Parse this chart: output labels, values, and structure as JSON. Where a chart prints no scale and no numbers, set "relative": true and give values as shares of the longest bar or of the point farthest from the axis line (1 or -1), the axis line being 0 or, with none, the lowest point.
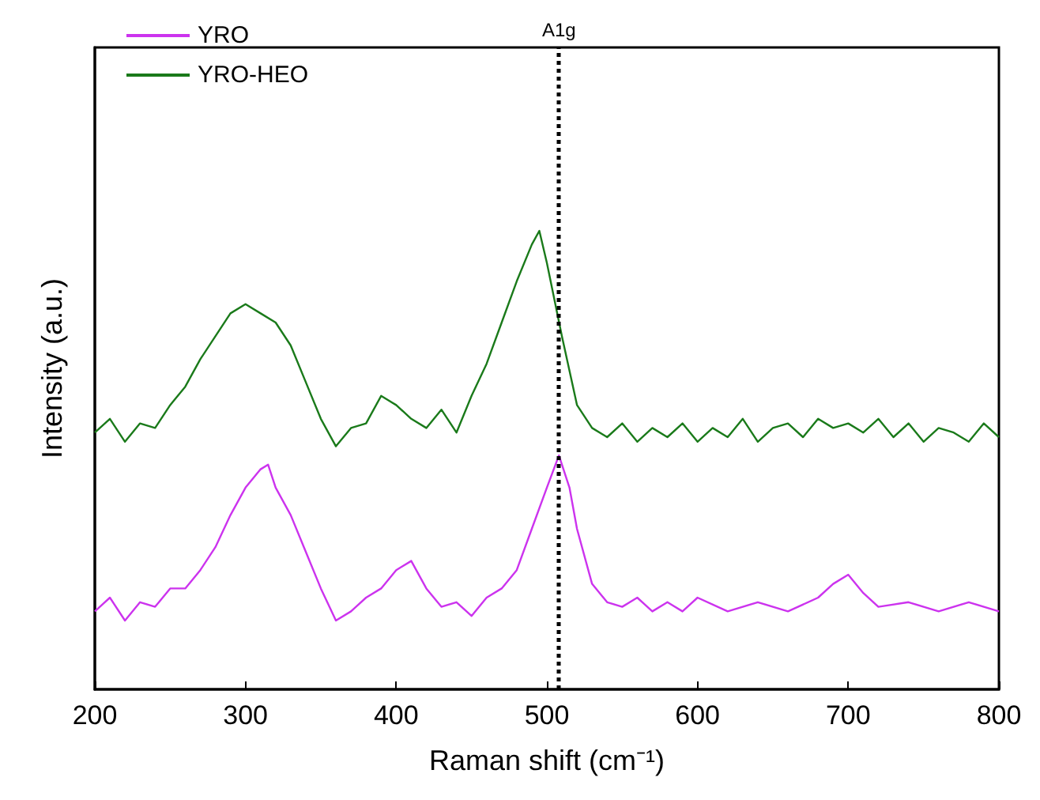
{
  "chart_data": {
    "type": "line",
    "xlabel": "Raman shift (cm⁻¹)",
    "ylabel": "Intensity (a.u.)",
    "relative": true,
    "xlim": [
      200,
      800
    ],
    "xticks": [
      200,
      300,
      400,
      500,
      600,
      700,
      800
    ],
    "legend": "top left",
    "grid": false,
    "marker": "none",
    "line_style": "solid",
    "ref_lines": [
      {
        "axis": "x",
        "value": 508,
        "label": "A1g",
        "line_style": "dotted",
        "color": "#000000"
      }
    ],
    "series": [
      {
        "name": "YRO",
        "color": "#cc33ee",
        "x": [
          200,
          210,
          220,
          230,
          240,
          250,
          260,
          270,
          280,
          290,
          300,
          310,
          315,
          320,
          330,
          340,
          350,
          360,
          370,
          380,
          390,
          400,
          410,
          420,
          430,
          440,
          450,
          460,
          470,
          480,
          490,
          500,
          508,
          515,
          520,
          530,
          540,
          550,
          560,
          570,
          580,
          590,
          600,
          620,
          640,
          660,
          680,
          690,
          700,
          710,
          720,
          740,
          760,
          780,
          800
        ],
        "values": [
          0.17,
          0.2,
          0.15,
          0.19,
          0.18,
          0.22,
          0.22,
          0.26,
          0.31,
          0.38,
          0.44,
          0.48,
          0.49,
          0.44,
          0.38,
          0.3,
          0.22,
          0.15,
          0.17,
          0.2,
          0.22,
          0.26,
          0.28,
          0.22,
          0.18,
          0.19,
          0.16,
          0.2,
          0.22,
          0.26,
          0.35,
          0.44,
          0.51,
          0.44,
          0.35,
          0.23,
          0.19,
          0.18,
          0.2,
          0.17,
          0.19,
          0.17,
          0.2,
          0.17,
          0.19,
          0.17,
          0.2,
          0.23,
          0.25,
          0.21,
          0.18,
          0.19,
          0.17,
          0.19,
          0.17
        ]
      },
      {
        "name": "YRO-HEO",
        "color": "#1a7a1a",
        "x": [
          200,
          210,
          220,
          230,
          240,
          250,
          260,
          270,
          280,
          290,
          300,
          310,
          320,
          330,
          340,
          350,
          360,
          370,
          380,
          390,
          400,
          410,
          420,
          430,
          440,
          450,
          460,
          470,
          480,
          490,
          495,
          500,
          510,
          520,
          530,
          540,
          550,
          560,
          570,
          580,
          590,
          600,
          610,
          620,
          630,
          640,
          650,
          660,
          670,
          680,
          690,
          700,
          710,
          720,
          730,
          740,
          750,
          760,
          770,
          780,
          790,
          800
        ],
        "values": [
          0.56,
          0.59,
          0.54,
          0.58,
          0.57,
          0.62,
          0.66,
          0.72,
          0.77,
          0.82,
          0.84,
          0.82,
          0.8,
          0.75,
          0.67,
          0.59,
          0.53,
          0.57,
          0.58,
          0.64,
          0.62,
          0.59,
          0.57,
          0.61,
          0.56,
          0.64,
          0.71,
          0.8,
          0.89,
          0.97,
          1,
          0.93,
          0.77,
          0.62,
          0.57,
          0.55,
          0.58,
          0.54,
          0.57,
          0.55,
          0.58,
          0.54,
          0.57,
          0.55,
          0.59,
          0.54,
          0.57,
          0.58,
          0.55,
          0.59,
          0.57,
          0.58,
          0.56,
          0.59,
          0.55,
          0.58,
          0.54,
          0.57,
          0.56,
          0.54,
          0.58,
          0.55
        ]
      }
    ]
  }
}
